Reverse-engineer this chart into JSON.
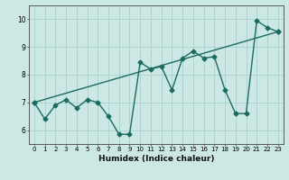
{
  "title": "",
  "xlabel": "Humidex (Indice chaleur)",
  "ylabel": "",
  "background_color": "#cce8e4",
  "grid_color": "#aacfcb",
  "line_color": "#1a6b60",
  "xlim": [
    -0.5,
    23.5
  ],
  "ylim": [
    5.5,
    10.5
  ],
  "xticks": [
    0,
    1,
    2,
    3,
    4,
    5,
    6,
    7,
    8,
    9,
    10,
    11,
    12,
    13,
    14,
    15,
    16,
    17,
    18,
    19,
    20,
    21,
    22,
    23
  ],
  "yticks": [
    6,
    7,
    8,
    9,
    10
  ],
  "line1_x": [
    0,
    1,
    2,
    3,
    4,
    5,
    6,
    7,
    8,
    9,
    10,
    11,
    12,
    13,
    14,
    15,
    16,
    17,
    18,
    19,
    20,
    21,
    22,
    23
  ],
  "line1_y": [
    7.0,
    6.4,
    6.9,
    7.1,
    6.8,
    7.1,
    7.0,
    6.5,
    5.85,
    5.85,
    8.45,
    8.2,
    8.3,
    7.45,
    8.6,
    8.85,
    8.6,
    8.65,
    7.45,
    6.6,
    6.6,
    9.95,
    9.7,
    9.55
  ],
  "line2_x": [
    0,
    23
  ],
  "line2_y": [
    7.0,
    9.55
  ],
  "marker_size": 2.5,
  "linewidth": 1.0,
  "tick_fontsize": 5.0,
  "xlabel_fontsize": 6.5
}
